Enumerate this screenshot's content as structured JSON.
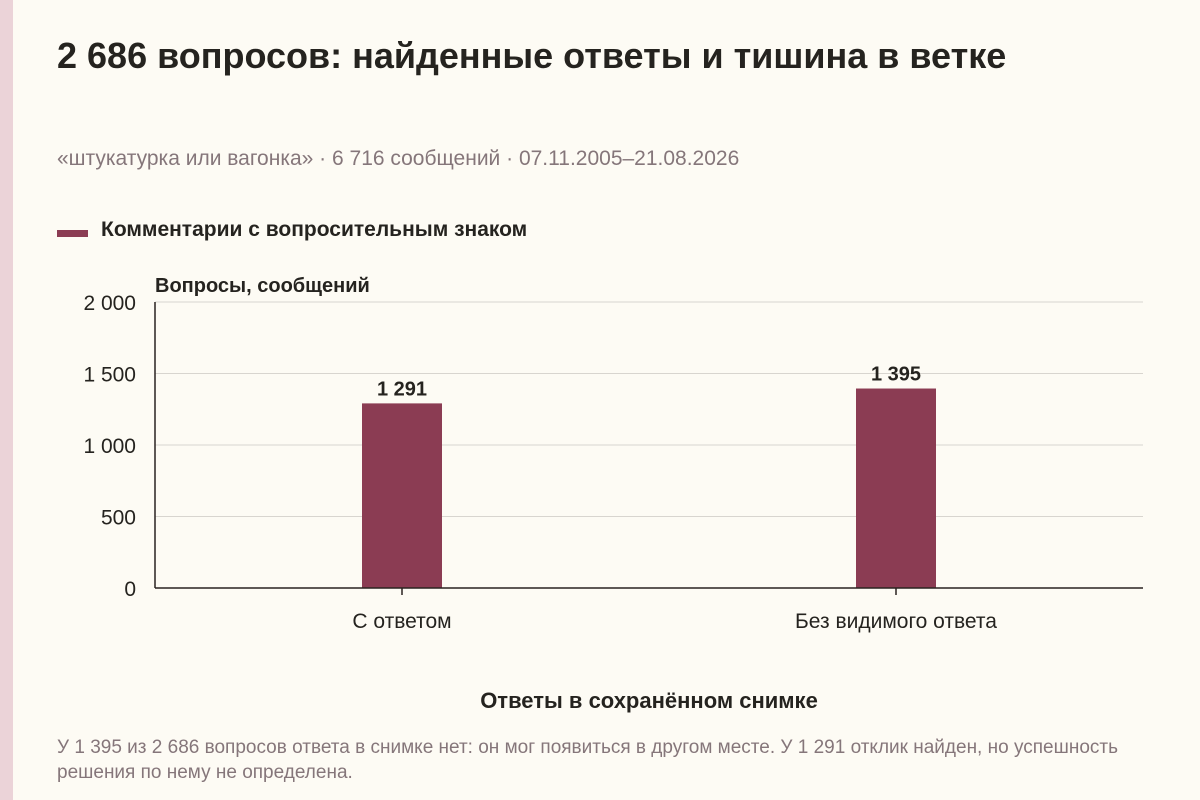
{
  "title": "2 686 вопросов: найденные ответы и тишина в ветке",
  "subtitle": "«штукатурка или вагонка» · 6 716 сообщений · 07.11.2005–21.08.2026",
  "caption": "У 1 395 из 2 686 вопросов ответа в снимке нет: он мог появиться в другом месте. У 1 291 отклик найден, но успешность решения по нему не определена.",
  "colors": {
    "bar": "#8b3c53",
    "grid": "#d8d5cf",
    "axis": "#2a2320",
    "muted": "#85767a"
  },
  "chart_data": {
    "type": "bar",
    "legend": "Комментарии с вопросительным знаком",
    "legend_position": "top-left",
    "ylabel": "Вопросы, сообщений",
    "xlabel": "Ответы в сохранённом снимке",
    "categories": [
      "С ответом",
      "Без видимого ответа"
    ],
    "series": [
      {
        "name": "Комментарии с вопросительным знаком",
        "values": [
          1291,
          1395
        ],
        "labels": [
          "1 291",
          "1 395"
        ]
      }
    ],
    "ylim": [
      0,
      2000
    ],
    "yticks": [
      0,
      500,
      1000,
      1500,
      2000
    ],
    "ytick_labels": [
      "0",
      "500",
      "1 000",
      "1 500",
      "2 000"
    ],
    "grid": true
  }
}
